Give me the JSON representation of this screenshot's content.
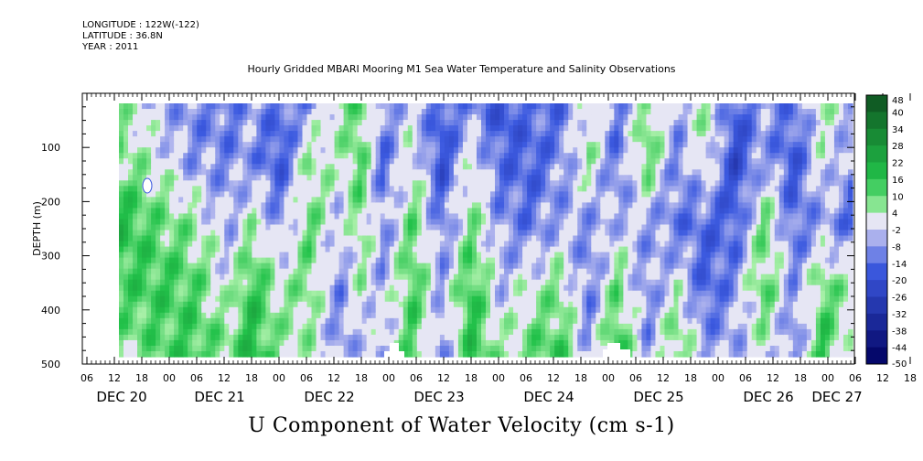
{
  "header": {
    "longitude": "LONGITUDE : 122W(-122)",
    "latitude": "LATITUDE : 36.8N",
    "year": "YEAR : 2011"
  },
  "colors": {
    "positive_dark": "#0d4d1e",
    "positive_mid": "#22c24a",
    "positive_light": "#a8f0a8",
    "neutral": "#e6e6f4",
    "negative_light": "#b4b8ee",
    "negative_mid": "#3c5ae0",
    "negative_dark": "#000060"
  },
  "chart_data": {
    "type": "heatmap",
    "title": "Hourly Gridded MBARI Mooring M1 Sea Water Temperature and Salinity Observations",
    "xlabel": "U Component of Water Velocity (cm s-1)",
    "ylabel": "DEPTH (m)",
    "ylim": [
      500,
      0
    ],
    "yticks": [
      100,
      200,
      300,
      400,
      500
    ],
    "x_hour_ticks": [
      "06",
      "12",
      "18",
      "00",
      "06",
      "12",
      "18",
      "00",
      "06",
      "12",
      "18",
      "00",
      "06",
      "12",
      "18",
      "00",
      "06",
      "12",
      "18",
      "00",
      "06",
      "12",
      "18",
      "00",
      "06",
      "12",
      "18",
      "00",
      "06",
      "12",
      "18",
      "00"
    ],
    "x_day_labels": [
      "DEC 20",
      "DEC 21",
      "DEC 22",
      "DEC 23",
      "DEC 24",
      "DEC 25",
      "DEC 26",
      "DEC 27"
    ],
    "colorbar": {
      "levels": [
        48,
        40,
        34,
        28,
        22,
        16,
        10,
        4,
        -2,
        -8,
        -14,
        -20,
        -26,
        -32,
        -38,
        -44,
        -50
      ],
      "min": -50,
      "max": 48
    },
    "u_profiles": [
      {
        "x": 0.0,
        "u": [
          6,
          8,
          18,
          12,
          6
        ]
      },
      {
        "x": 0.05,
        "u": [
          -4,
          2,
          10,
          14,
          10
        ]
      },
      {
        "x": 0.1,
        "u": [
          -10,
          -8,
          6,
          12,
          14
        ]
      },
      {
        "x": 0.15,
        "u": [
          -12,
          -10,
          -6,
          0,
          8
        ]
      },
      {
        "x": 0.18,
        "u": [
          -6,
          -8,
          4,
          16,
          18
        ]
      },
      {
        "x": 0.22,
        "u": [
          -14,
          -18,
          -8,
          4,
          6
        ]
      },
      {
        "x": 0.26,
        "u": [
          -8,
          6,
          10,
          8,
          4
        ]
      },
      {
        "x": 0.3,
        "u": [
          6,
          2,
          -4,
          -10,
          -8
        ]
      },
      {
        "x": 0.33,
        "u": [
          10,
          12,
          8,
          4,
          -4
        ]
      },
      {
        "x": 0.36,
        "u": [
          -8,
          -14,
          -10,
          -6,
          -4
        ]
      },
      {
        "x": 0.4,
        "u": [
          -2,
          4,
          10,
          14,
          12
        ]
      },
      {
        "x": 0.44,
        "u": [
          -16,
          -20,
          -12,
          -6,
          -10
        ]
      },
      {
        "x": 0.48,
        "u": [
          -8,
          2,
          8,
          16,
          16
        ]
      },
      {
        "x": 0.52,
        "u": [
          -20,
          -14,
          -8,
          -4,
          4
        ]
      },
      {
        "x": 0.56,
        "u": [
          -12,
          -16,
          -12,
          2,
          10
        ]
      },
      {
        "x": 0.6,
        "u": [
          -14,
          -10,
          -6,
          8,
          14
        ]
      },
      {
        "x": 0.64,
        "u": [
          2,
          6,
          -8,
          -12,
          -6
        ]
      },
      {
        "x": 0.68,
        "u": [
          -10,
          -14,
          -4,
          10,
          16
        ]
      },
      {
        "x": 0.72,
        "u": [
          8,
          12,
          -6,
          -10,
          -8
        ]
      },
      {
        "x": 0.76,
        "u": [
          -6,
          -10,
          -12,
          2,
          12
        ]
      },
      {
        "x": 0.8,
        "u": [
          6,
          4,
          -14,
          -16,
          -6
        ]
      },
      {
        "x": 0.84,
        "u": [
          -16,
          -22,
          -16,
          -8,
          -6
        ]
      },
      {
        "x": 0.88,
        "u": [
          -8,
          -6,
          10,
          12,
          2
        ]
      },
      {
        "x": 0.92,
        "u": [
          -12,
          -18,
          -14,
          -8,
          -12
        ]
      },
      {
        "x": 0.96,
        "u": [
          4,
          2,
          -6,
          10,
          16
        ]
      },
      {
        "x": 1.0,
        "u": [
          -4,
          -10,
          -14,
          4,
          -2
        ]
      }
    ],
    "profile_depths": [
      20,
      120,
      240,
      360,
      480
    ]
  }
}
